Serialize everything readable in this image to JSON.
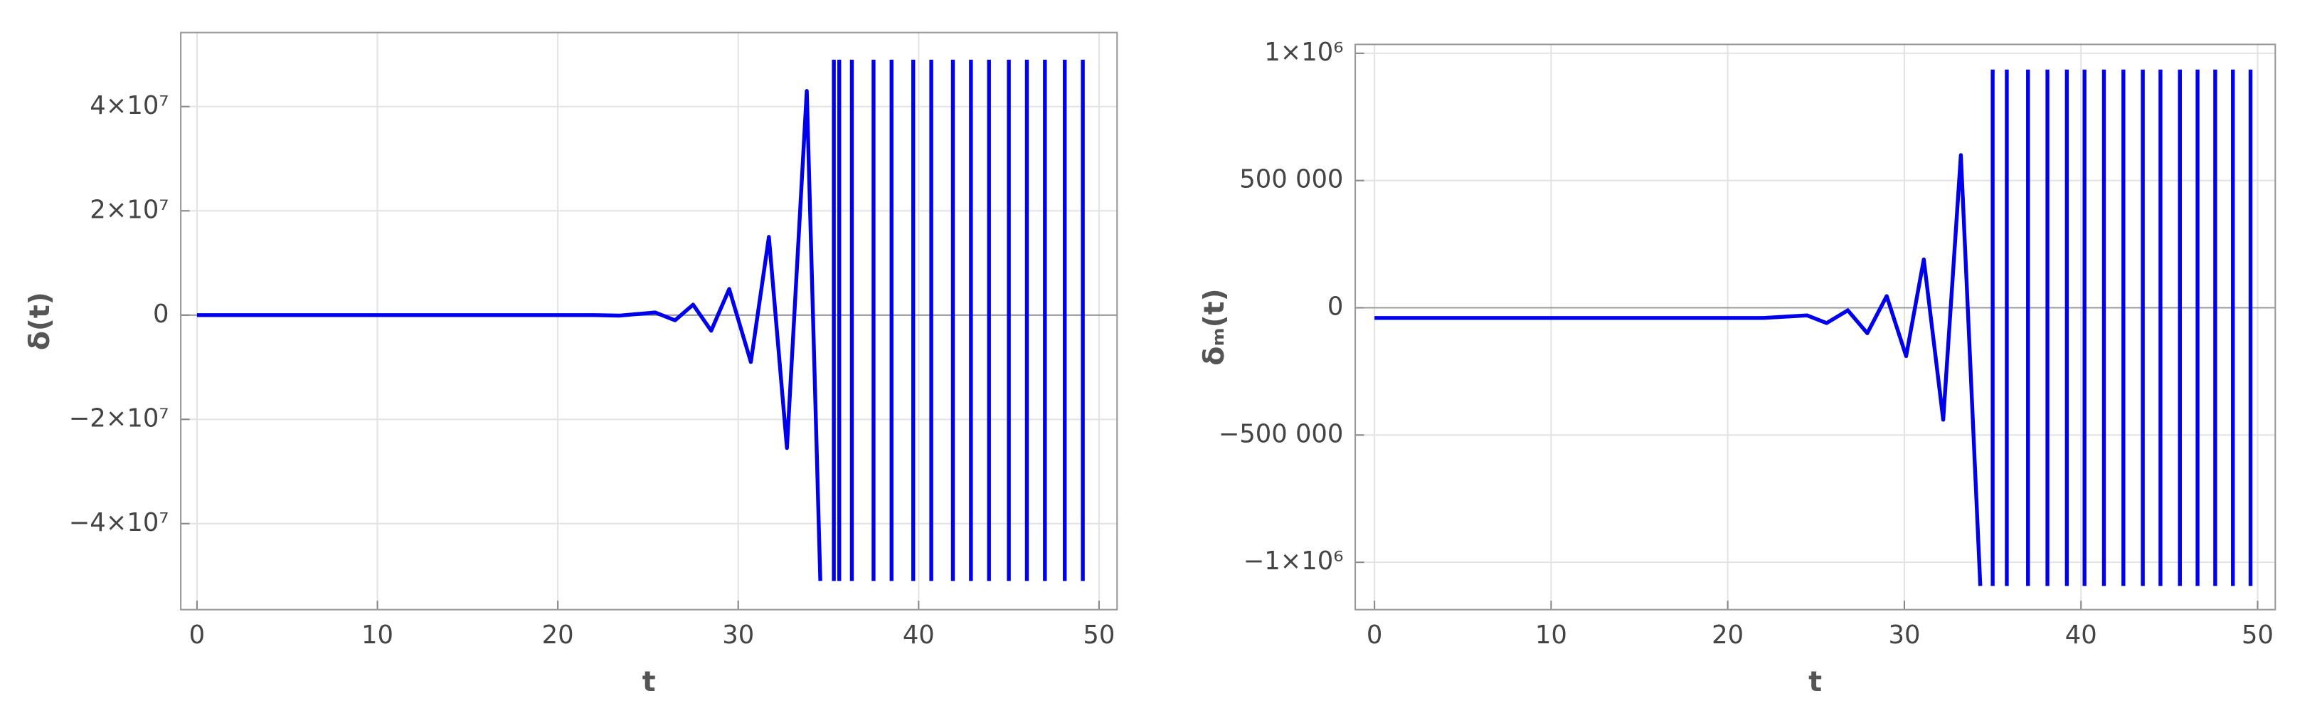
{
  "chart_data": [
    {
      "type": "line",
      "xlabel": "t",
      "ylabel": "δ(t)",
      "color": "#0000ee",
      "grid": true,
      "xlim": [
        -0.9,
        51
      ],
      "ylim": [
        -56500000,
        54200000
      ],
      "xticks": [
        0,
        10,
        20,
        30,
        40,
        50
      ],
      "yticks": [
        {
          "value": -40000000,
          "label": "−4×10⁷"
        },
        {
          "value": -20000000,
          "label": "−2×10⁷"
        },
        0,
        {
          "value": 20000000,
          "label": "2×10⁷"
        },
        {
          "value": 40000000,
          "label": "4×10⁷"
        }
      ],
      "x": [
        0,
        5,
        10,
        15,
        20,
        22,
        23.4,
        24.4,
        25.4,
        26.5,
        27.5,
        28.5,
        29.5,
        30.7,
        31.7,
        32.7,
        33.8,
        34.55,
        null,
        35.3,
        35.3,
        null,
        35.6,
        35.6,
        null,
        36.3,
        36.3,
        null,
        37.5,
        37.5,
        null,
        38.5,
        38.5,
        null,
        39.7,
        39.7,
        null,
        40.7,
        40.7,
        null,
        41.9,
        41.9,
        null,
        42.9,
        42.9,
        null,
        43.9,
        43.9,
        null,
        45.0,
        45.0,
        null,
        46.0,
        46.0,
        null,
        47.0,
        47.0,
        null,
        48.1,
        48.1,
        null,
        49.1,
        49.1
      ],
      "values": [
        0,
        0,
        0,
        0,
        0,
        0,
        -100000,
        200000,
        500000,
        -1000000,
        2000000,
        -3000000,
        5000000,
        -9000000,
        15000000,
        -25500000,
        43000000,
        -51000000,
        null,
        -51000000,
        49000000,
        null,
        -51000000,
        49000000,
        null,
        -51000000,
        49000000,
        null,
        -51000000,
        49000000,
        null,
        -51000000,
        49000000,
        null,
        -51000000,
        49000000,
        null,
        -51000000,
        49000000,
        null,
        -51000000,
        49000000,
        null,
        -51000000,
        49000000,
        null,
        -51000000,
        49000000,
        null,
        -51000000,
        49000000,
        null,
        -51000000,
        49000000,
        null,
        -51000000,
        49000000,
        null,
        -51000000,
        49000000,
        null,
        -51000000,
        49000000
      ]
    },
    {
      "type": "line",
      "xlabel": "t",
      "ylabel": "δₘ(t)",
      "color": "#0000ee",
      "grid": true,
      "xlim": [
        -1.09,
        51
      ],
      "ylim": [
        -1186000,
        1035000
      ],
      "xticks": [
        0,
        10,
        20,
        30,
        40,
        50
      ],
      "yticks": [
        {
          "value": -1000000,
          "label": "−1×10⁶"
        },
        {
          "value": -500000,
          "label": "−500 000"
        },
        0,
        {
          "value": 500000,
          "label": "500 000"
        },
        {
          "value": 1000000,
          "label": "1×10⁶"
        }
      ],
      "x": [
        0,
        5,
        10,
        15,
        20,
        22,
        24.5,
        25.6,
        26.8,
        27.9,
        29.0,
        30.1,
        31.1,
        32.2,
        33.2,
        34.3,
        null,
        35.0,
        35.0,
        null,
        35.8,
        35.8,
        null,
        37.0,
        37.0,
        null,
        38.1,
        38.1,
        null,
        39.2,
        39.2,
        null,
        40.2,
        40.2,
        null,
        41.3,
        41.3,
        null,
        42.4,
        42.4,
        null,
        43.5,
        43.5,
        null,
        44.5,
        44.5,
        null,
        45.6,
        45.6,
        null,
        46.6,
        46.6,
        null,
        47.6,
        47.6,
        null,
        48.6,
        48.6,
        null,
        49.6,
        49.6
      ],
      "values": [
        -40000,
        -40000,
        -40000,
        -40000,
        -40000,
        -40000,
        -30000,
        -60000,
        -10000,
        -100000,
        46000,
        -190000,
        190000,
        -440000,
        600000,
        -1093000,
        null,
        -1093000,
        936000,
        null,
        -1093000,
        936000,
        null,
        -1093000,
        936000,
        null,
        -1093000,
        936000,
        null,
        -1093000,
        936000,
        null,
        -1093000,
        936000,
        null,
        -1093000,
        936000,
        null,
        -1093000,
        936000,
        null,
        -1093000,
        936000,
        null,
        -1093000,
        936000,
        null,
        -1093000,
        936000,
        null,
        -1093000,
        936000,
        null,
        -1093000,
        936000,
        null,
        -1093000,
        936000,
        null,
        -1093000,
        936000
      ]
    }
  ]
}
